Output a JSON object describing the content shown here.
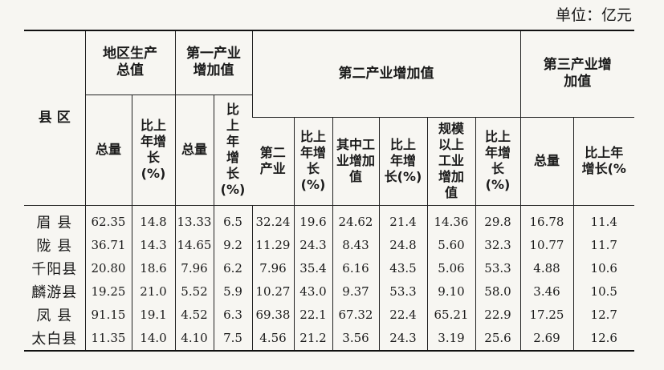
{
  "unit_label": "单位：亿元",
  "headers": {
    "county": "县 区",
    "gdp": "地区生产总值",
    "primary": "第一产业增加值",
    "secondary": "第二产业增加值",
    "tertiary": "第三产业增加值",
    "total": "总量",
    "growth": "比上年增长(%)",
    "secondary_industry": "第二产业",
    "growth_short": "比上年增长(%)",
    "industrial_value": "其中工业增加值",
    "above_scale": "规模以上工业增加值",
    "growth_cut": "比上年增长(%"
  },
  "rows": [
    {
      "county": "眉 县",
      "gdp": "62.35",
      "gdp_g": "14.8",
      "p": "13.33",
      "p_g": "6.5",
      "s": "32.24",
      "s_g": "19.6",
      "ind": "24.62",
      "ind_g": "21.4",
      "as": "14.36",
      "as_g": "29.8",
      "t": "16.78",
      "t_g": "11.4"
    },
    {
      "county": "陇 县",
      "gdp": "36.71",
      "gdp_g": "14.3",
      "p": "14.65",
      "p_g": "9.2",
      "s": "11.29",
      "s_g": "24.3",
      "ind": "8.43",
      "ind_g": "24.8",
      "as": "5.60",
      "as_g": "32.3",
      "t": "10.77",
      "t_g": "11.7"
    },
    {
      "county": "千阳县",
      "gdp": "20.80",
      "gdp_g": "18.6",
      "p": "7.96",
      "p_g": "6.2",
      "s": "7.96",
      "s_g": "35.4",
      "ind": "6.16",
      "ind_g": "43.5",
      "as": "5.06",
      "as_g": "53.3",
      "t": "4.88",
      "t_g": "10.6"
    },
    {
      "county": "麟游县",
      "gdp": "19.25",
      "gdp_g": "21.0",
      "p": "5.52",
      "p_g": "5.9",
      "s": "10.27",
      "s_g": "43.0",
      "ind": "9.37",
      "ind_g": "53.3",
      "as": "9.10",
      "as_g": "58.0",
      "t": "3.46",
      "t_g": "10.5"
    },
    {
      "county": "凤 县",
      "gdp": "91.15",
      "gdp_g": "19.1",
      "p": "4.52",
      "p_g": "6.3",
      "s": "69.38",
      "s_g": "22.1",
      "ind": "67.32",
      "ind_g": "22.4",
      "as": "65.21",
      "as_g": "22.9",
      "t": "17.25",
      "t_g": "12.7"
    },
    {
      "county": "太白县",
      "gdp": "11.35",
      "gdp_g": "14.0",
      "p": "4.10",
      "p_g": "7.5",
      "s": "4.56",
      "s_g": "21.2",
      "ind": "3.56",
      "ind_g": "24.3",
      "as": "3.19",
      "as_g": "25.6",
      "t": "2.69",
      "t_g": "12.6"
    }
  ]
}
